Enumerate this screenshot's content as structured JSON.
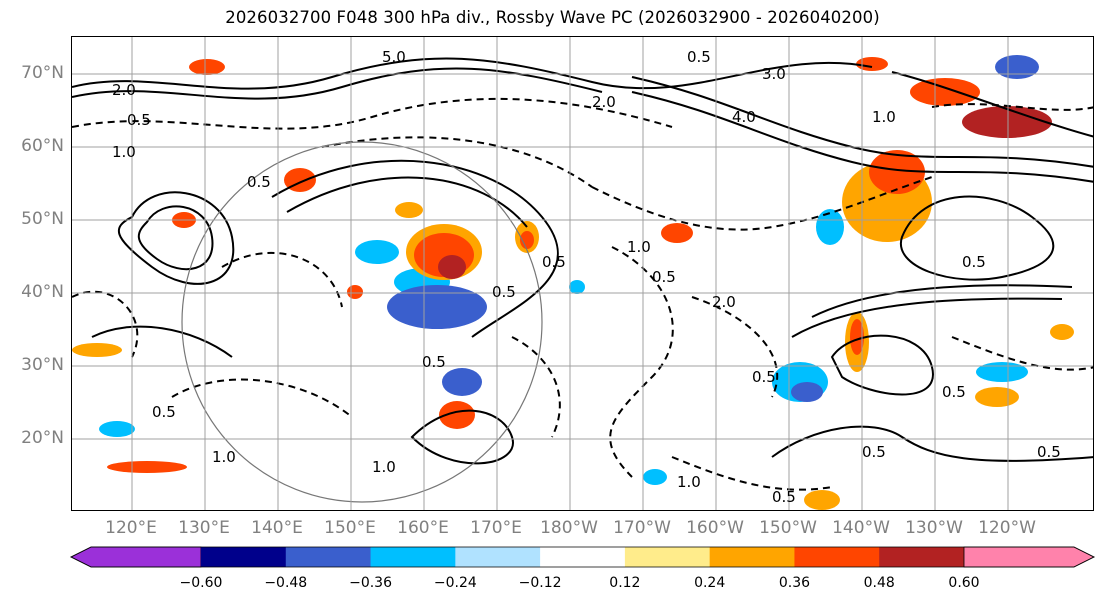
{
  "title": "2026032700 F048 300 hPa div., Rossby Wave PC (2026032900 - 2026040200)",
  "lat_labels": [
    "70°N",
    "60°N",
    "50°N",
    "40°N",
    "30°N",
    "20°N"
  ],
  "lon_labels": [
    "120°E",
    "130°E",
    "140°E",
    "150°E",
    "160°E",
    "170°E",
    "180°W",
    "170°W",
    "160°W",
    "150°W",
    "140°W",
    "130°W",
    "120°W"
  ],
  "colorbar": {
    "ticks": [
      "−0.60",
      "−0.48",
      "−0.36",
      "−0.24",
      "−0.12",
      "0.12",
      "0.24",
      "0.36",
      "0.48",
      "0.60"
    ],
    "colors": [
      "#9b30d9",
      "#00008b",
      "#3a5fcd",
      "#00bfff",
      "#b0e2ff",
      "#ffffff",
      "#ffec8b",
      "#ffa500",
      "#ff4500",
      "#b22222",
      "#ff82ab"
    ]
  },
  "contour_labels": [
    "2.0",
    "0.5",
    "1.0",
    "5.0",
    "4.0",
    "3.0",
    "2.0",
    "1.0",
    "0.5",
    "0.5",
    "1.0",
    "0.5",
    "0.5",
    "1.0",
    "0.5",
    "0.5",
    "2.0",
    "0.5",
    "1.0",
    "0.5",
    "0.5",
    "1.0",
    "0.5",
    "0.5",
    "0.5",
    "0.5"
  ],
  "colors": {
    "grid": "#a0a0a0",
    "axis_label": "#808080",
    "contour": "#000000"
  }
}
